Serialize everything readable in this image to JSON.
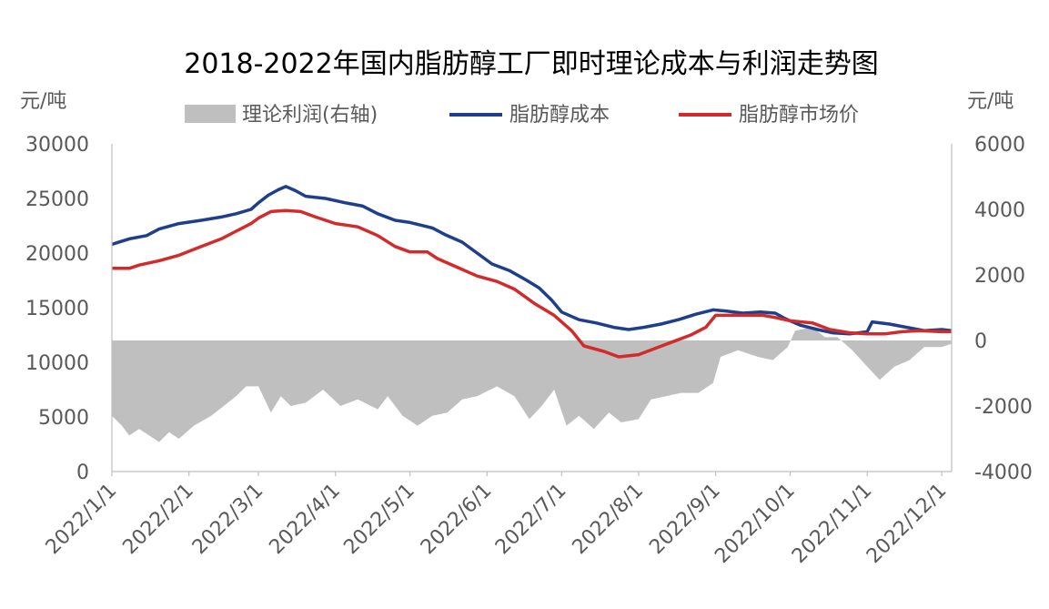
{
  "chart_data": {
    "type": "line",
    "title": "2018-2022年国内脂肪醇工厂即时理论成本与利润走势图",
    "y_left_unit": "元/吨",
    "y_right_unit": "元/吨",
    "ylim_left": [
      0,
      30000
    ],
    "ylim_right": [
      -4000,
      6000
    ],
    "y_left_ticks": [
      "0",
      "5000",
      "10000",
      "15000",
      "20000",
      "25000",
      "30000"
    ],
    "y_right_ticks": [
      "-4000",
      "-2000",
      "0",
      "2000",
      "4000",
      "6000"
    ],
    "x_ticks": [
      "2022/1/1",
      "2022/2/1",
      "2022/3/1",
      "2022/4/1",
      "2022/5/1",
      "2022/6/1",
      "2022/7/1",
      "2022/8/1",
      "2022/9/1",
      "2022/10/1",
      "2022/11/1",
      "2022/12/1"
    ],
    "x_start": "2022/1/1",
    "x_end": "2022/12/5",
    "legend": [
      "理论利润(右轴)",
      "脂肪醇成本",
      "脂肪醇市场价"
    ],
    "colors": {
      "profit": "#bfbfbf",
      "cost": "#1f3f8c",
      "price": "#d22b2b"
    },
    "series": [
      {
        "name": "脂肪醇成本",
        "axis": "left",
        "points": [
          [
            "2022/1/1",
            20800
          ],
          [
            "2022/1/8",
            21300
          ],
          [
            "2022/1/15",
            21600
          ],
          [
            "2022/1/20",
            22200
          ],
          [
            "2022/1/28",
            22700
          ],
          [
            "2022/2/6",
            23000
          ],
          [
            "2022/2/14",
            23300
          ],
          [
            "2022/2/20",
            23600
          ],
          [
            "2022/2/26",
            24000
          ],
          [
            "2022/3/1",
            24600
          ],
          [
            "2022/3/5",
            25300
          ],
          [
            "2022/3/9",
            25800
          ],
          [
            "2022/3/12",
            26100
          ],
          [
            "2022/3/16",
            25700
          ],
          [
            "2022/3/20",
            25200
          ],
          [
            "2022/3/28",
            25000
          ],
          [
            "2022/4/5",
            24600
          ],
          [
            "2022/4/12",
            24300
          ],
          [
            "2022/4/18",
            23600
          ],
          [
            "2022/4/25",
            23000
          ],
          [
            "2022/5/1",
            22800
          ],
          [
            "2022/5/10",
            22300
          ],
          [
            "2022/5/15",
            21700
          ],
          [
            "2022/5/22",
            21000
          ],
          [
            "2022/5/28",
            20000
          ],
          [
            "2022/6/3",
            19000
          ],
          [
            "2022/6/10",
            18400
          ],
          [
            "2022/6/17",
            17500
          ],
          [
            "2022/6/22",
            16800
          ],
          [
            "2022/6/27",
            15700
          ],
          [
            "2022/7/1",
            14600
          ],
          [
            "2022/7/8",
            13900
          ],
          [
            "2022/7/15",
            13600
          ],
          [
            "2022/7/22",
            13200
          ],
          [
            "2022/7/28",
            13000
          ],
          [
            "2022/8/3",
            13200
          ],
          [
            "2022/8/10",
            13500
          ],
          [
            "2022/8/17",
            13900
          ],
          [
            "2022/8/24",
            14400
          ],
          [
            "2022/8/31",
            14800
          ],
          [
            "2022/9/5",
            14700
          ],
          [
            "2022/9/12",
            14500
          ],
          [
            "2022/9/19",
            14600
          ],
          [
            "2022/9/25",
            14500
          ],
          [
            "2022/9/29",
            14000
          ],
          [
            "2022/10/5",
            13400
          ],
          [
            "2022/10/12",
            13000
          ],
          [
            "2022/10/18",
            12700
          ],
          [
            "2022/10/25",
            12600
          ],
          [
            "2022/11/1",
            12800
          ],
          [
            "2022/11/3",
            13700
          ],
          [
            "2022/11/10",
            13500
          ],
          [
            "2022/11/17",
            13200
          ],
          [
            "2022/11/24",
            12900
          ],
          [
            "2022/12/1",
            13000
          ],
          [
            "2022/12/5",
            12900
          ]
        ]
      },
      {
        "name": "脂肪醇市场价",
        "axis": "left",
        "points": [
          [
            "2022/1/1",
            18600
          ],
          [
            "2022/1/8",
            18600
          ],
          [
            "2022/1/12",
            18900
          ],
          [
            "2022/1/20",
            19300
          ],
          [
            "2022/1/28",
            19800
          ],
          [
            "2022/2/6",
            20600
          ],
          [
            "2022/2/14",
            21300
          ],
          [
            "2022/2/20",
            22000
          ],
          [
            "2022/2/26",
            22700
          ],
          [
            "2022/3/1",
            23200
          ],
          [
            "2022/3/6",
            23800
          ],
          [
            "2022/3/12",
            23900
          ],
          [
            "2022/3/18",
            23800
          ],
          [
            "2022/3/24",
            23300
          ],
          [
            "2022/4/1",
            22700
          ],
          [
            "2022/4/10",
            22400
          ],
          [
            "2022/4/18",
            21600
          ],
          [
            "2022/4/25",
            20600
          ],
          [
            "2022/5/1",
            20100
          ],
          [
            "2022/5/8",
            20100
          ],
          [
            "2022/5/12",
            19500
          ],
          [
            "2022/5/20",
            18700
          ],
          [
            "2022/5/28",
            17900
          ],
          [
            "2022/6/5",
            17400
          ],
          [
            "2022/6/12",
            16700
          ],
          [
            "2022/6/20",
            15400
          ],
          [
            "2022/6/28",
            14300
          ],
          [
            "2022/7/5",
            12900
          ],
          [
            "2022/7/10",
            11500
          ],
          [
            "2022/7/18",
            11000
          ],
          [
            "2022/7/24",
            10500
          ],
          [
            "2022/8/1",
            10700
          ],
          [
            "2022/8/8",
            11300
          ],
          [
            "2022/8/15",
            11900
          ],
          [
            "2022/8/22",
            12500
          ],
          [
            "2022/8/28",
            13200
          ],
          [
            "2022/9/1",
            14300
          ],
          [
            "2022/9/10",
            14300
          ],
          [
            "2022/9/20",
            14300
          ],
          [
            "2022/9/25",
            14100
          ],
          [
            "2022/10/1",
            13800
          ],
          [
            "2022/10/10",
            13600
          ],
          [
            "2022/10/17",
            13000
          ],
          [
            "2022/10/25",
            12700
          ],
          [
            "2022/11/1",
            12600
          ],
          [
            "2022/11/8",
            12600
          ],
          [
            "2022/11/15",
            12800
          ],
          [
            "2022/11/22",
            12900
          ],
          [
            "2022/12/1",
            12800
          ],
          [
            "2022/12/5",
            12800
          ]
        ]
      },
      {
        "name": "理论利润(右轴)",
        "axis": "right",
        "kind": "area",
        "points": [
          [
            "2022/1/1",
            -2300
          ],
          [
            "2022/1/5",
            -2600
          ],
          [
            "2022/1/8",
            -2900
          ],
          [
            "2022/1/12",
            -2700
          ],
          [
            "2022/1/16",
            -2900
          ],
          [
            "2022/1/20",
            -3100
          ],
          [
            "2022/1/24",
            -2800
          ],
          [
            "2022/1/28",
            -3000
          ],
          [
            "2022/2/3",
            -2600
          ],
          [
            "2022/2/10",
            -2300
          ],
          [
            "2022/2/15",
            -2000
          ],
          [
            "2022/2/20",
            -1700
          ],
          [
            "2022/2/24",
            -1400
          ],
          [
            "2022/3/1",
            -1400
          ],
          [
            "2022/3/6",
            -2200
          ],
          [
            "2022/3/10",
            -1700
          ],
          [
            "2022/3/14",
            -2000
          ],
          [
            "2022/3/20",
            -1900
          ],
          [
            "2022/3/27",
            -1500
          ],
          [
            "2022/4/3",
            -2000
          ],
          [
            "2022/4/10",
            -1800
          ],
          [
            "2022/4/18",
            -2100
          ],
          [
            "2022/4/22",
            -1700
          ],
          [
            "2022/4/28",
            -2300
          ],
          [
            "2022/5/4",
            -2600
          ],
          [
            "2022/5/10",
            -2300
          ],
          [
            "2022/5/16",
            -2200
          ],
          [
            "2022/5/22",
            -1800
          ],
          [
            "2022/5/28",
            -1700
          ],
          [
            "2022/6/5",
            -1400
          ],
          [
            "2022/6/12",
            -1700
          ],
          [
            "2022/6/18",
            -2400
          ],
          [
            "2022/6/23",
            -2000
          ],
          [
            "2022/6/28",
            -1500
          ],
          [
            "2022/7/3",
            -2600
          ],
          [
            "2022/7/8",
            -2300
          ],
          [
            "2022/7/14",
            -2700
          ],
          [
            "2022/7/20",
            -2200
          ],
          [
            "2022/7/25",
            -2500
          ],
          [
            "2022/8/1",
            -2400
          ],
          [
            "2022/8/6",
            -1800
          ],
          [
            "2022/8/12",
            -1700
          ],
          [
            "2022/8/18",
            -1600
          ],
          [
            "2022/8/25",
            -1600
          ],
          [
            "2022/8/31",
            -1300
          ],
          [
            "2022/9/3",
            -500
          ],
          [
            "2022/9/10",
            -300
          ],
          [
            "2022/9/18",
            -500
          ],
          [
            "2022/9/24",
            -600
          ],
          [
            "2022/9/30",
            -200
          ],
          [
            "2022/10/3",
            300
          ],
          [
            "2022/10/10",
            400
          ],
          [
            "2022/10/15",
            100
          ],
          [
            "2022/10/20",
            100
          ],
          [
            "2022/10/26",
            -300
          ],
          [
            "2022/11/1",
            -800
          ],
          [
            "2022/11/6",
            -1200
          ],
          [
            "2022/11/12",
            -800
          ],
          [
            "2022/11/18",
            -600
          ],
          [
            "2022/11/24",
            -200
          ],
          [
            "2022/12/1",
            -200
          ],
          [
            "2022/12/5",
            -100
          ]
        ]
      }
    ]
  }
}
